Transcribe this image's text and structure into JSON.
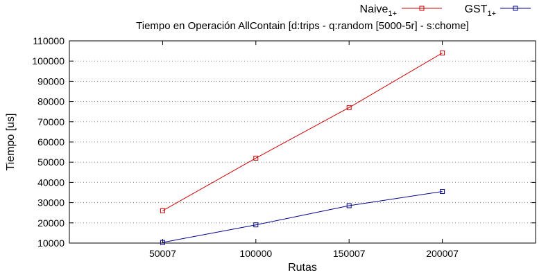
{
  "chart_data": {
    "type": "line",
    "title": "Tiempo en Operación AllContain [d:trips - q:random [5000-5r] - s:chome]",
    "xlabel": "Rutas",
    "ylabel": "Tiempo [us]",
    "x": [
      50007,
      100000,
      150007,
      200007
    ],
    "xlim": [
      0,
      250007
    ],
    "ylim": [
      10000,
      110000
    ],
    "yticks": [
      10000,
      20000,
      30000,
      40000,
      50000,
      60000,
      70000,
      80000,
      90000,
      100000,
      110000
    ],
    "grid": "horizontal-dotted",
    "legend_position": "top-right",
    "series": [
      {
        "name": "Naive",
        "name_subscript": "1+",
        "color": "#cc0000",
        "marker": "square",
        "values": [
          26000,
          52000,
          77000,
          104000
        ]
      },
      {
        "name": "GST",
        "name_subscript": "1+",
        "color": "#00008b",
        "marker": "square",
        "values": [
          10300,
          19000,
          28500,
          35500
        ]
      }
    ]
  }
}
